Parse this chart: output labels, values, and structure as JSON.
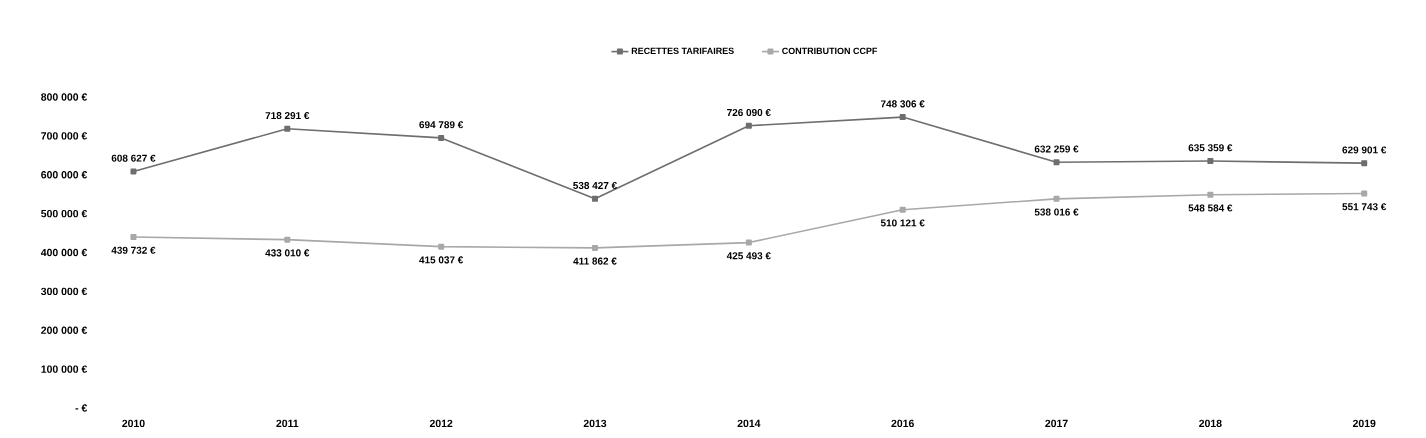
{
  "chart_data": {
    "type": "line",
    "categories": [
      "2010",
      "2011",
      "2012",
      "2013",
      "2014",
      "2016",
      "2017",
      "2018",
      "2019"
    ],
    "series": [
      {
        "name": "RECETTES TARIFAIRES",
        "color": "#6e6e6e",
        "values": [
          608627,
          718291,
          694789,
          538427,
          726090,
          748306,
          632259,
          635359,
          629901
        ],
        "value_labels": [
          "608 627 €",
          "718 291 €",
          "694 789 €",
          "538 427 €",
          "726 090 €",
          "748 306 €",
          "632 259 €",
          "635 359 €",
          "629 901 €"
        ]
      },
      {
        "name": "CONTRIBUTION CCPF",
        "color": "#a8a8a8",
        "values": [
          439732,
          433010,
          415037,
          411862,
          425493,
          510121,
          538016,
          548584,
          551743
        ],
        "value_labels": [
          "439 732 €",
          "433 010 €",
          "415 037 €",
          "411 862 €",
          "425 493 €",
          "510 121 €",
          "538 016 €",
          "548 584 €",
          "551 743 €"
        ]
      }
    ],
    "ylim": [
      0,
      800000
    ],
    "yticks": [
      {
        "value": 0,
        "label": "- €"
      },
      {
        "value": 100000,
        "label": "100 000 €"
      },
      {
        "value": 200000,
        "label": "200 000 €"
      },
      {
        "value": 300000,
        "label": "300 000 €"
      },
      {
        "value": 400000,
        "label": "400 000 €"
      },
      {
        "value": 500000,
        "label": "500 000 €"
      },
      {
        "value": 600000,
        "label": "600 000 €"
      },
      {
        "value": 700000,
        "label": "700 000 €"
      },
      {
        "value": 800000,
        "label": "800 000 €"
      }
    ],
    "legend": "top",
    "marker": "square",
    "line_style": "solid"
  }
}
